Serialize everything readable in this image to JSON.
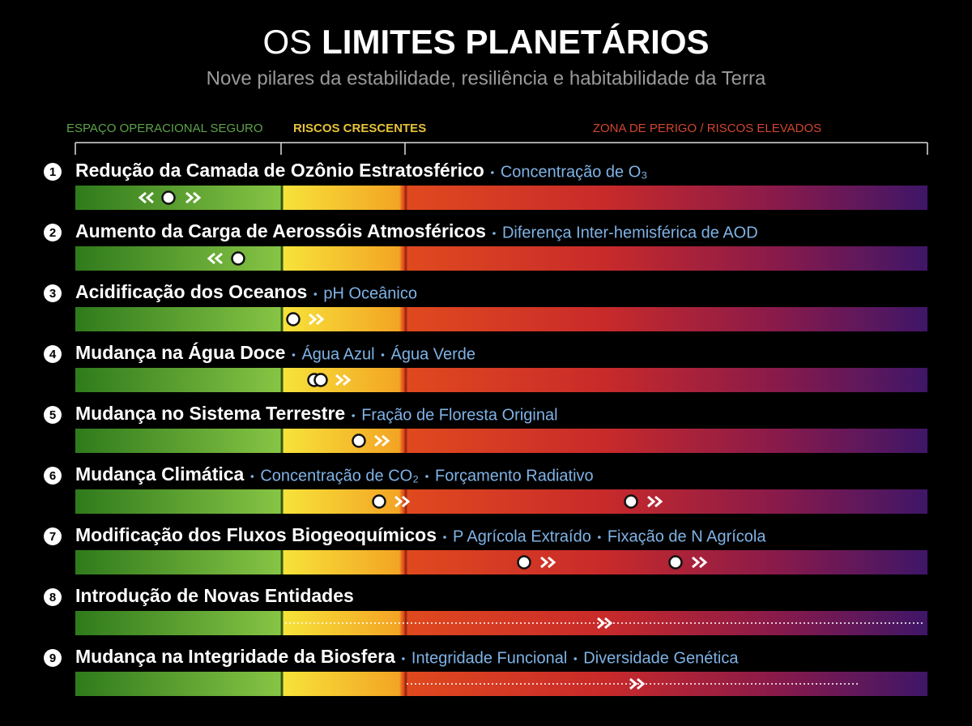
{
  "header": {
    "title_light": "OS",
    "title_bold": "LIMITES PLANETÁRIOS",
    "subtitle": "Nove pilares da estabilidade, resiliência e habitabilidade da Terra"
  },
  "zones": [
    "ESPAÇO OPERACIONAL SEGURO",
    "RISCOS CRESCENTES",
    "ZONA DE PERIGO / RISCOS ELEVADOS"
  ],
  "boundaries": [
    {
      "number": "1",
      "title": "Redução da Camada de Ozônio Estratosférico",
      "indicators": [
        "Concentração de O₃"
      ]
    },
    {
      "number": "2",
      "title": "Aumento da Carga de Aerossóis Atmosféricos",
      "indicators": [
        "Diferença Inter-hemisférica de AOD"
      ]
    },
    {
      "number": "3",
      "title": "Acidificação dos Oceanos",
      "indicators": [
        "pH Oceânico"
      ]
    },
    {
      "number": "4",
      "title": "Mudança na Água Doce",
      "indicators": [
        "Água Azul",
        "Água Verde"
      ]
    },
    {
      "number": "5",
      "title": "Mudança no Sistema Terrestre",
      "indicators": [
        "Fração de Floresta Original"
      ]
    },
    {
      "number": "6",
      "title": "Mudança Climática",
      "indicators": [
        "Concentração de CO₂",
        "Forçamento Radiativo"
      ]
    },
    {
      "number": "7",
      "title": "Modificação dos Fluxos Biogeoquímicos",
      "indicators": [
        "P Agrícola Extraído",
        "Fixação de N Agrícola"
      ]
    },
    {
      "number": "8",
      "title": "Introdução de Novas Entidades",
      "indicators": []
    },
    {
      "number": "9",
      "title": "Mudança na Integridade da Biosfera",
      "indicators": [
        "Integridade Funcional",
        "Diversidade Genética"
      ]
    }
  ]
}
